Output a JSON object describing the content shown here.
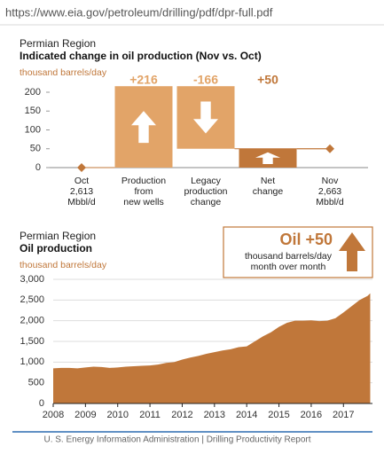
{
  "url": "https://www.eia.gov/petroleum/drilling/pdf/dpr-full.pdf",
  "chart_data": [
    {
      "type": "waterfall",
      "subtitle": "Permian Region",
      "title": "Indicated change in oil production (Nov vs. Oct)",
      "y_label": "thousand barrels/day",
      "categories": [
        [
          "Oct",
          "2,613",
          "Mbbl/d"
        ],
        [
          "Production",
          "from",
          "new wells"
        ],
        [
          "Legacy",
          "production",
          "change"
        ],
        [
          "Net",
          "change"
        ],
        [
          "Nov",
          "2,663",
          "Mbbl/d"
        ]
      ],
      "values": [
        0,
        216,
        -166,
        50,
        50
      ],
      "value_labels": [
        null,
        "+216",
        "-166",
        "+50",
        null
      ],
      "kinds": [
        "start",
        "step",
        "step",
        "total",
        "end"
      ],
      "colors": [
        "#c0773a",
        "#e2a468",
        "#e2a468",
        "#c0773a",
        "#c0773a"
      ],
      "ylim": [
        0,
        220
      ],
      "yticks": [
        0,
        50,
        100,
        150,
        200
      ]
    },
    {
      "type": "area",
      "subtitle": "Permian Region",
      "title": "Oil production",
      "y_label": "thousand barrels/day",
      "x": [
        2008.0,
        2008.25,
        2008.5,
        2008.75,
        2009.0,
        2009.25,
        2009.5,
        2009.75,
        2010.0,
        2010.25,
        2010.5,
        2010.75,
        2011.0,
        2011.25,
        2011.5,
        2011.75,
        2012.0,
        2012.25,
        2012.5,
        2012.75,
        2013.0,
        2013.25,
        2013.5,
        2013.75,
        2014.0,
        2014.25,
        2014.5,
        2014.75,
        2015.0,
        2015.25,
        2015.5,
        2015.75,
        2016.0,
        2016.25,
        2016.5,
        2016.75,
        2017.0,
        2017.25,
        2017.5,
        2017.75,
        2017.83
      ],
      "values": [
        850,
        860,
        860,
        850,
        870,
        890,
        880,
        860,
        870,
        890,
        900,
        910,
        920,
        940,
        980,
        1000,
        1060,
        1110,
        1150,
        1200,
        1240,
        1280,
        1310,
        1360,
        1380,
        1500,
        1620,
        1720,
        1850,
        1950,
        2000,
        2000,
        2010,
        1990,
        2000,
        2060,
        2200,
        2350,
        2500,
        2600,
        2663
      ],
      "color": "#c0773a",
      "xlim": [
        2008,
        2017.9
      ],
      "xticks": [
        2008,
        2009,
        2010,
        2011,
        2012,
        2013,
        2014,
        2015,
        2016,
        2017
      ],
      "ylim": [
        0,
        3000
      ],
      "yticks": [
        0,
        500,
        {
          "value": 1000,
          "label": "1,000"
        },
        {
          "value": 1500,
          "label": "1,500"
        },
        {
          "value": 2000,
          "label": "2,000"
        },
        {
          "value": 2500,
          "label": "2,500"
        },
        {
          "value": 3000,
          "label": "3,000"
        }
      ],
      "grid": true,
      "annotation": {
        "title": "Oil +50",
        "lines": [
          "thousand barrels/day",
          "month over month"
        ]
      }
    }
  ],
  "footer": "U. S. Energy Information Administration  |  Drilling Productivity Report"
}
